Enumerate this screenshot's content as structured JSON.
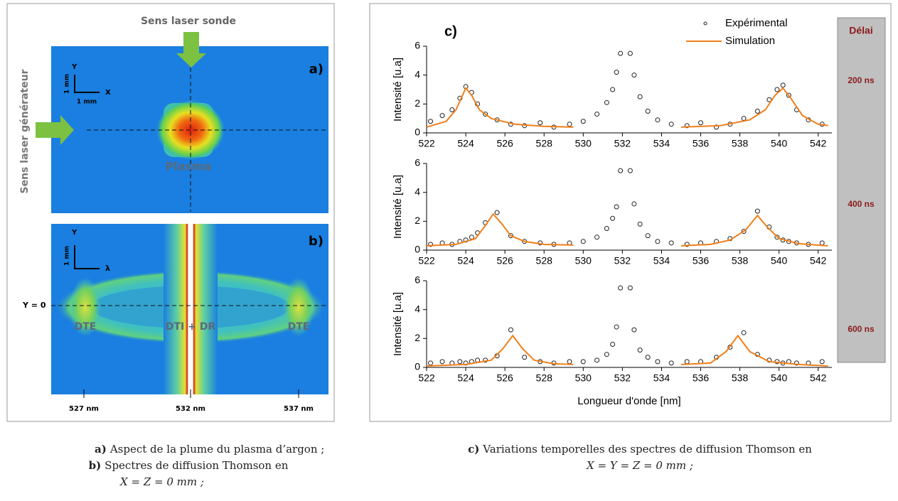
{
  "panel_a": {
    "label": "a)",
    "probe_arrow": "Sens laser sonde",
    "generator_arrow": "Sens laser générateur",
    "axis_y": "Y",
    "scale_y": "1 mm",
    "axis_x": "X",
    "scale_x": "1 mm",
    "plasma": "Plasma"
  },
  "panel_b": {
    "label": "b)",
    "axis_y": "Y",
    "scale_y": "1 mm",
    "axis_x": "λ",
    "y_zero": "Y = 0",
    "dte_left": "DTE",
    "center": "DTI + DR",
    "dte_right": "DTE",
    "ticks": [
      "527 nm",
      "532 nm",
      "537 nm"
    ]
  },
  "delay_box": {
    "title": "Délai",
    "labels": [
      "200 ns",
      "400 ns",
      "600 ns"
    ]
  },
  "captions": {
    "a_label": "a)",
    "a_text": "Aspect de la plume du plasma d’argon ;",
    "b_label": "b)",
    "b_text": "Spectres de diffusion Thomson en",
    "b_cond": "X = Z = 0 mm ;",
    "c_label": "c)",
    "c_text": "Variations temporelles des spectres de diffusion Thomson en",
    "c_cond": "X = Y = Z = 0 mm ;"
  },
  "chart_data": [
    {
      "type": "scatter",
      "title": "c)",
      "ylabel": "Intensité [u.a]",
      "legend": true,
      "xlim": [
        522,
        542.7
      ],
      "xticks": [
        522,
        524,
        526,
        528,
        530,
        532,
        534,
        536,
        538,
        540,
        542
      ],
      "ylim": [
        0,
        6
      ],
      "yticks": [
        0,
        2,
        4,
        6
      ],
      "series": [
        {
          "name": "Expérimental",
          "color": "#222222",
          "style": "markers",
          "x": [
            522.2,
            522.8,
            523.3,
            523.7,
            524.0,
            524.3,
            524.6,
            525.0,
            525.6,
            526.3,
            527.0,
            527.8,
            528.5,
            529.3,
            530.0,
            530.7,
            531.2,
            531.5,
            531.7,
            531.9,
            532.4,
            532.6,
            532.9,
            533.3,
            533.8,
            534.5,
            535.3,
            536.0,
            536.8,
            537.5,
            538.2,
            538.9,
            539.5,
            539.9,
            540.2,
            540.5,
            540.9,
            541.5,
            542.2
          ],
          "values": [
            0.8,
            1.2,
            1.6,
            2.4,
            3.2,
            2.8,
            2.0,
            1.3,
            0.9,
            0.6,
            0.5,
            0.7,
            0.4,
            0.6,
            0.8,
            1.3,
            2.1,
            3.0,
            4.2,
            5.5,
            5.5,
            4.0,
            2.5,
            1.5,
            0.9,
            0.6,
            0.5,
            0.7,
            0.4,
            0.6,
            1.0,
            1.5,
            2.3,
            3.0,
            3.3,
            2.6,
            1.6,
            0.9,
            0.6
          ]
        },
        {
          "name": "Simulation",
          "color": "#f07f1a",
          "style": "line",
          "x": [
            522,
            523,
            523.5,
            523.8,
            524.0,
            524.3,
            524.7,
            525.3,
            526.5,
            528,
            529.5,
            532,
            535,
            537,
            538.5,
            539.3,
            539.8,
            540.2,
            540.6,
            541.2,
            542,
            542.5
          ],
          "values": [
            0.4,
            0.8,
            1.6,
            2.5,
            3.1,
            2.6,
            1.6,
            1.0,
            0.6,
            0.45,
            0.4,
            null,
            0.4,
            0.5,
            0.9,
            1.6,
            2.6,
            3.1,
            2.4,
            1.2,
            0.6,
            0.5
          ]
        }
      ]
    },
    {
      "type": "scatter",
      "ylabel": "Intensité [u.a]",
      "xlim": [
        522,
        542.7
      ],
      "xticks": [
        522,
        524,
        526,
        528,
        530,
        532,
        534,
        536,
        538,
        540,
        542
      ],
      "ylim": [
        0,
        6
      ],
      "yticks": [
        0,
        2,
        4,
        6
      ],
      "series": [
        {
          "color": "#222222",
          "style": "markers",
          "x": [
            522.2,
            522.8,
            523.3,
            523.7,
            524.0,
            524.3,
            524.6,
            525.0,
            525.6,
            526.3,
            527.0,
            527.8,
            528.5,
            529.3,
            530.0,
            530.7,
            531.2,
            531.5,
            531.7,
            531.9,
            532.4,
            532.6,
            532.9,
            533.3,
            533.8,
            534.5,
            535.3,
            536.0,
            536.8,
            537.5,
            538.2,
            538.9,
            539.5,
            539.9,
            540.2,
            540.5,
            540.9,
            541.5,
            542.2
          ],
          "values": [
            0.4,
            0.5,
            0.4,
            0.6,
            0.7,
            0.9,
            1.2,
            1.9,
            2.6,
            1.0,
            0.6,
            0.5,
            0.4,
            0.5,
            0.6,
            0.9,
            1.5,
            2.2,
            3.0,
            5.5,
            5.5,
            3.2,
            1.8,
            1.0,
            0.6,
            0.5,
            0.4,
            0.5,
            0.6,
            0.8,
            1.3,
            2.7,
            1.6,
            0.9,
            0.7,
            0.6,
            0.5,
            0.4,
            0.5
          ]
        },
        {
          "color": "#f07f1a",
          "style": "line",
          "x": [
            522,
            523.5,
            524.5,
            525.0,
            525.4,
            525.8,
            526.3,
            527,
            528,
            529.5,
            532,
            535,
            536.5,
            537.5,
            538.3,
            538.9,
            539.4,
            540,
            541,
            542.5
          ],
          "values": [
            0.3,
            0.4,
            0.8,
            1.7,
            2.5,
            1.9,
            1.0,
            0.6,
            0.4,
            0.35,
            null,
            0.3,
            0.4,
            0.7,
            1.4,
            2.4,
            1.6,
            0.8,
            0.45,
            0.3
          ]
        }
      ]
    },
    {
      "type": "scatter",
      "ylabel": "Intensité [u.a]",
      "xlabel": "Longueur d'onde  [nm]",
      "xlim": [
        522,
        542.7
      ],
      "xticks": [
        522,
        524,
        526,
        528,
        530,
        532,
        534,
        536,
        538,
        540,
        542
      ],
      "ylim": [
        0,
        6
      ],
      "yticks": [
        0,
        2,
        4,
        6
      ],
      "series": [
        {
          "color": "#222222",
          "style": "markers",
          "x": [
            522.2,
            522.8,
            523.3,
            523.7,
            524.0,
            524.3,
            524.6,
            525.0,
            525.6,
            526.3,
            527.0,
            527.8,
            528.5,
            529.3,
            530.0,
            530.7,
            531.2,
            531.5,
            531.7,
            531.9,
            532.4,
            532.6,
            532.9,
            533.3,
            533.8,
            534.5,
            535.3,
            536.0,
            536.8,
            537.5,
            538.2,
            538.9,
            539.5,
            539.9,
            540.2,
            540.5,
            540.9,
            541.5,
            542.2
          ],
          "values": [
            0.3,
            0.4,
            0.3,
            0.4,
            0.3,
            0.4,
            0.5,
            0.5,
            0.8,
            2.6,
            0.7,
            0.4,
            0.3,
            0.4,
            0.4,
            0.5,
            0.9,
            1.6,
            2.8,
            5.5,
            5.5,
            2.6,
            1.2,
            0.7,
            0.4,
            0.3,
            0.4,
            0.4,
            0.7,
            1.4,
            2.4,
            0.9,
            0.5,
            0.4,
            0.3,
            0.4,
            0.3,
            0.3,
            0.4
          ]
        },
        {
          "color": "#f07f1a",
          "style": "line",
          "x": [
            522,
            524,
            525.3,
            525.9,
            526.4,
            526.9,
            527.5,
            528.5,
            529.5,
            532,
            535,
            536.5,
            537.3,
            537.9,
            538.5,
            539.5,
            541,
            542.5
          ],
          "values": [
            0.1,
            0.2,
            0.5,
            1.3,
            2.2,
            1.3,
            0.5,
            0.25,
            0.2,
            null,
            0.2,
            0.3,
            1.1,
            2.2,
            1.1,
            0.4,
            0.2,
            0.1
          ]
        }
      ]
    }
  ]
}
